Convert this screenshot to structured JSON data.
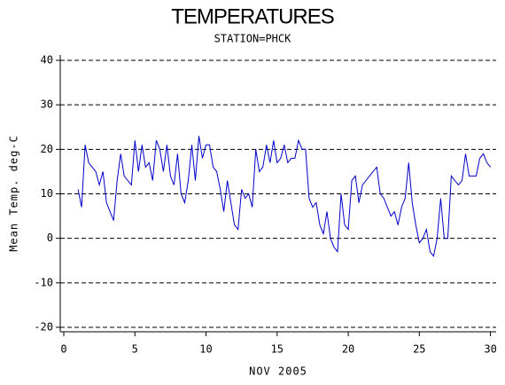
{
  "chart_data": {
    "type": "line",
    "title": "TEMPERATURES",
    "subtitle": "STATION=PHCK",
    "x_label": "NOV 2005",
    "y_label": "Mean Temp. deg-C",
    "x": [
      1,
      1.25,
      1.5,
      1.75,
      2,
      2.25,
      2.5,
      2.75,
      3,
      3.25,
      3.5,
      3.75,
      4,
      4.25,
      4.5,
      4.75,
      5,
      5.25,
      5.5,
      5.75,
      6,
      6.25,
      6.5,
      6.75,
      7,
      7.25,
      7.5,
      7.75,
      8,
      8.25,
      8.5,
      8.75,
      9,
      9.25,
      9.5,
      9.75,
      10,
      10.25,
      10.5,
      10.75,
      11,
      11.25,
      11.5,
      11.75,
      12,
      12.25,
      12.5,
      12.75,
      13,
      13.25,
      13.5,
      13.75,
      14,
      14.25,
      14.5,
      14.75,
      15,
      15.25,
      15.5,
      15.75,
      16,
      16.25,
      16.5,
      16.75,
      17,
      17.25,
      17.5,
      17.75,
      18,
      18.25,
      18.5,
      18.75,
      19,
      19.25,
      19.5,
      19.75,
      20,
      20.25,
      20.5,
      20.75,
      21,
      21.25,
      21.5,
      21.75,
      22,
      22.25,
      22.5,
      22.75,
      23,
      23.25,
      23.5,
      23.75,
      24,
      24.25,
      24.5,
      24.75,
      25,
      25.25,
      25.5,
      25.75,
      26,
      26.25,
      26.5,
      26.75,
      27,
      27.25,
      27.5,
      27.75,
      28,
      28.25,
      28.5,
      28.75,
      29,
      29.25,
      29.5,
      29.75,
      30
    ],
    "series": [
      {
        "name": "Mean Temp",
        "color": "#0000cc",
        "values": [
          11,
          7,
          21,
          17,
          16,
          15,
          12,
          15,
          8,
          6,
          4,
          13,
          19,
          14,
          13,
          12,
          22,
          15,
          21,
          16,
          17,
          13,
          22,
          20,
          15,
          21,
          14,
          12,
          19,
          10,
          8,
          13,
          21,
          13,
          23,
          18,
          21,
          21,
          16,
          15,
          11,
          6,
          13,
          8,
          3,
          2,
          11,
          9,
          10,
          7,
          20,
          15,
          16,
          21,
          17,
          22,
          17,
          18,
          21,
          17,
          18,
          18,
          22,
          20,
          20,
          9,
          7,
          8,
          3,
          1,
          6,
          0,
          -2,
          -3,
          10,
          3,
          2,
          13,
          14,
          8,
          12,
          13,
          14,
          15,
          16,
          10,
          9,
          7,
          5,
          6,
          3,
          7,
          9,
          17,
          8,
          3,
          -1,
          0,
          2,
          -3,
          -4,
          0,
          9,
          0,
          0,
          14,
          13,
          12,
          13,
          19,
          14,
          14,
          14,
          18,
          19,
          17,
          16
        ]
      }
    ],
    "xlim": [
      -0.25,
      30.4
    ],
    "ylim": [
      -21,
      41.2
    ],
    "xticks": [
      0,
      5,
      10,
      15,
      20,
      25,
      30
    ],
    "yticks": [
      -20,
      -10,
      0,
      10,
      20,
      30,
      40
    ],
    "grid": true
  }
}
